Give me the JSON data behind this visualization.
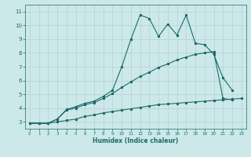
{
  "xlabel": "Humidex (Indice chaleur)",
  "bg_color": "#cde8e8",
  "grid_color": "#b8d4d4",
  "line_color": "#1a6b6b",
  "xlim": [
    -0.5,
    23.5
  ],
  "ylim": [
    2.5,
    11.5
  ],
  "xticks": [
    0,
    1,
    2,
    3,
    4,
    5,
    6,
    7,
    8,
    9,
    10,
    11,
    12,
    13,
    14,
    15,
    16,
    17,
    18,
    19,
    20,
    21,
    22,
    23
  ],
  "yticks": [
    3,
    4,
    5,
    6,
    7,
    8,
    9,
    10,
    11
  ],
  "series1_x": [
    0,
    1,
    2,
    3,
    4,
    5,
    6,
    7,
    8,
    9,
    10,
    11,
    12,
    13,
    14,
    15,
    16,
    17,
    18,
    19,
    20,
    21,
    22
  ],
  "series1_y": [
    2.9,
    2.9,
    2.9,
    3.2,
    3.9,
    4.1,
    4.35,
    4.5,
    4.85,
    5.3,
    7.0,
    9.0,
    10.75,
    10.5,
    9.2,
    10.1,
    9.3,
    10.75,
    8.7,
    8.6,
    7.9,
    6.2,
    5.3
  ],
  "series2_x": [
    0,
    1,
    2,
    3,
    4,
    5,
    6,
    7,
    8,
    9,
    10,
    11,
    12,
    13,
    14,
    15,
    16,
    17,
    18,
    19,
    20,
    21,
    22
  ],
  "series2_y": [
    2.9,
    2.9,
    2.9,
    3.2,
    3.85,
    4.0,
    4.25,
    4.4,
    4.7,
    5.05,
    5.5,
    5.9,
    6.3,
    6.6,
    6.95,
    7.2,
    7.5,
    7.7,
    7.9,
    8.0,
    8.1,
    4.7,
    4.6
  ],
  "series3_x": [
    0,
    1,
    2,
    3,
    4,
    5,
    6,
    7,
    8,
    9,
    10,
    11,
    12,
    13,
    14,
    15,
    16,
    17,
    18,
    19,
    20,
    21,
    22,
    23
  ],
  "series3_y": [
    2.9,
    2.9,
    2.9,
    3.0,
    3.1,
    3.2,
    3.4,
    3.5,
    3.65,
    3.75,
    3.85,
    3.95,
    4.05,
    4.15,
    4.25,
    4.3,
    4.35,
    4.4,
    4.45,
    4.5,
    4.55,
    4.6,
    4.65,
    4.7
  ]
}
